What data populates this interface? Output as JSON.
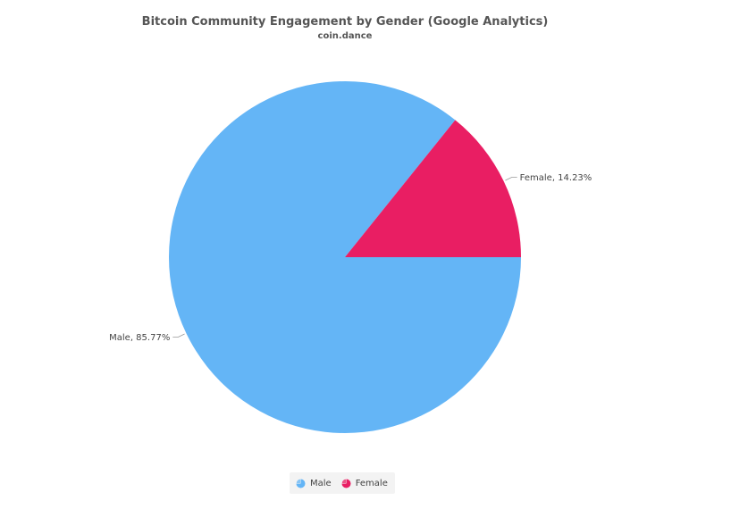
{
  "chart_data": {
    "type": "pie",
    "title": "Bitcoin Community Engagement by Gender (Google Analytics)",
    "subtitle": "coin.dance",
    "slices": [
      {
        "label": "Male",
        "value": 85.77,
        "color": "#64b5f6",
        "data_label": "Male, 85.77%"
      },
      {
        "label": "Female",
        "value": 14.23,
        "color": "#e91e63",
        "data_label": "Female, 14.23%"
      }
    ],
    "start_angle_deg": 0,
    "direction": "clockwise",
    "legend": {
      "position": "bottom-center",
      "items": [
        "Male",
        "Female"
      ]
    }
  }
}
